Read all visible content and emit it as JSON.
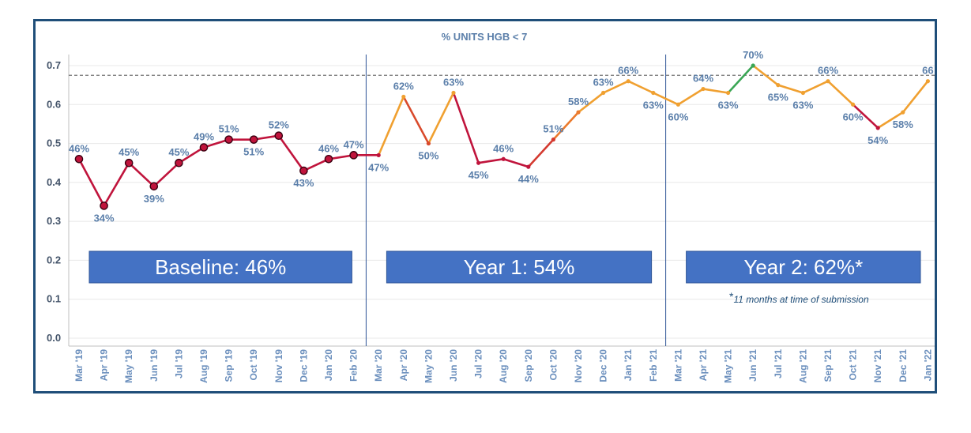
{
  "chart_data": {
    "type": "line",
    "title": "% UNITS HGB < 7",
    "xlabel": "",
    "ylabel": "",
    "ylim": [
      0,
      0.7
    ],
    "yticks": [
      "0.0",
      "0.1",
      "0.2",
      "0.3",
      "0.4",
      "0.5",
      "0.6",
      "0.7"
    ],
    "grid": true,
    "reference_line": 0.675,
    "categories": [
      "Mar '19",
      "Apr '19",
      "May '19",
      "Jun '19",
      "Jul '19",
      "Aug '19",
      "Sep '19",
      "Oct '19",
      "Nov '19",
      "Dec '19",
      "Jan '20",
      "Feb '20",
      "Mar '20",
      "Apr '20",
      "May '20",
      "Jun '20",
      "Jul '20",
      "Aug '20",
      "Sep '20",
      "Oct '20",
      "Nov '20",
      "Dec '20",
      "Jan '21",
      "Feb '21",
      "Mar '21",
      "Apr '21",
      "May '21",
      "Jun '21",
      "Jul '21",
      "Aug '21",
      "Sep '21",
      "Oct '21",
      "Nov '21",
      "Dec '21",
      "Jan '22"
    ],
    "values": [
      0.46,
      0.34,
      0.45,
      0.39,
      0.45,
      0.49,
      0.51,
      0.51,
      0.52,
      0.43,
      0.46,
      0.47,
      0.47,
      0.62,
      0.5,
      0.63,
      0.45,
      0.46,
      0.44,
      0.51,
      0.58,
      0.63,
      0.66,
      0.63,
      0.6,
      0.64,
      0.63,
      0.7,
      0.65,
      0.63,
      0.66,
      0.6,
      0.54,
      0.58,
      0.66
    ],
    "labels": [
      "46%",
      "34%",
      "45%",
      "39%",
      "45%",
      "49%",
      "51%",
      "51%",
      "52%",
      "43%",
      "46%",
      "47%",
      "47%",
      "62%",
      "50%",
      "63%",
      "45%",
      "46%",
      "44%",
      "51%",
      "58%",
      "63%",
      "66%",
      "63%",
      "60%",
      "64%",
      "63%",
      "70%",
      "65%",
      "63%",
      "66%",
      "60%",
      "54%",
      "58%",
      "66"
    ],
    "label_pos": [
      "above",
      "below",
      "above",
      "below",
      "above",
      "above",
      "above",
      "below",
      "above",
      "below",
      "above",
      "above",
      "below",
      "above",
      "below",
      "above",
      "below",
      "above",
      "below",
      "above",
      "above",
      "above",
      "above",
      "below",
      "below",
      "above",
      "below",
      "above",
      "below",
      "below",
      "above",
      "below",
      "below",
      "below",
      "above"
    ],
    "markers": [
      true,
      true,
      true,
      true,
      true,
      true,
      true,
      true,
      true,
      true,
      true,
      true,
      false,
      false,
      false,
      false,
      false,
      false,
      false,
      false,
      false,
      false,
      false,
      false,
      false,
      false,
      false,
      false,
      false,
      false,
      false,
      false,
      false,
      false,
      false
    ],
    "point_colors": [
      "#c0143c",
      "#c0143c",
      "#c0143c",
      "#c0143c",
      "#c0143c",
      "#c0143c",
      "#c0143c",
      "#c0143c",
      "#c0143c",
      "#c0143c",
      "#c0143c",
      "#c0143c",
      "#c0143c",
      "#f0a030",
      "#d94a2c",
      "#f0a030",
      "#c0143c",
      "#c0143c",
      "#c0143c",
      "#d43a30",
      "#eb7a2c",
      "#f0a030",
      "#f0a030",
      "#f0a030",
      "#f0a030",
      "#f0a030",
      "#f0a030",
      "#3aa655",
      "#f0a030",
      "#f0a030",
      "#f0a030",
      "#f0a030",
      "#c0143c",
      "#f0a030",
      "#f0a030"
    ],
    "phases": [
      {
        "label": "Baseline: 46%",
        "start": 0,
        "end": 11
      },
      {
        "label": "Year 1: 54%",
        "start": 12,
        "end": 23
      },
      {
        "label": "Year 2: 62%*",
        "start": 24,
        "end": 34
      }
    ],
    "footnote_star": "*",
    "footnote_text": "11 months at time of submission"
  },
  "colors": {
    "frame": "#1f4e79",
    "phase_box": "#4472c4",
    "phase_border": "#2f5597",
    "grid": "#e8e8e8",
    "axis": "#bfbfbf",
    "divider": "#2f5597",
    "reference": "#7f7f7f"
  }
}
